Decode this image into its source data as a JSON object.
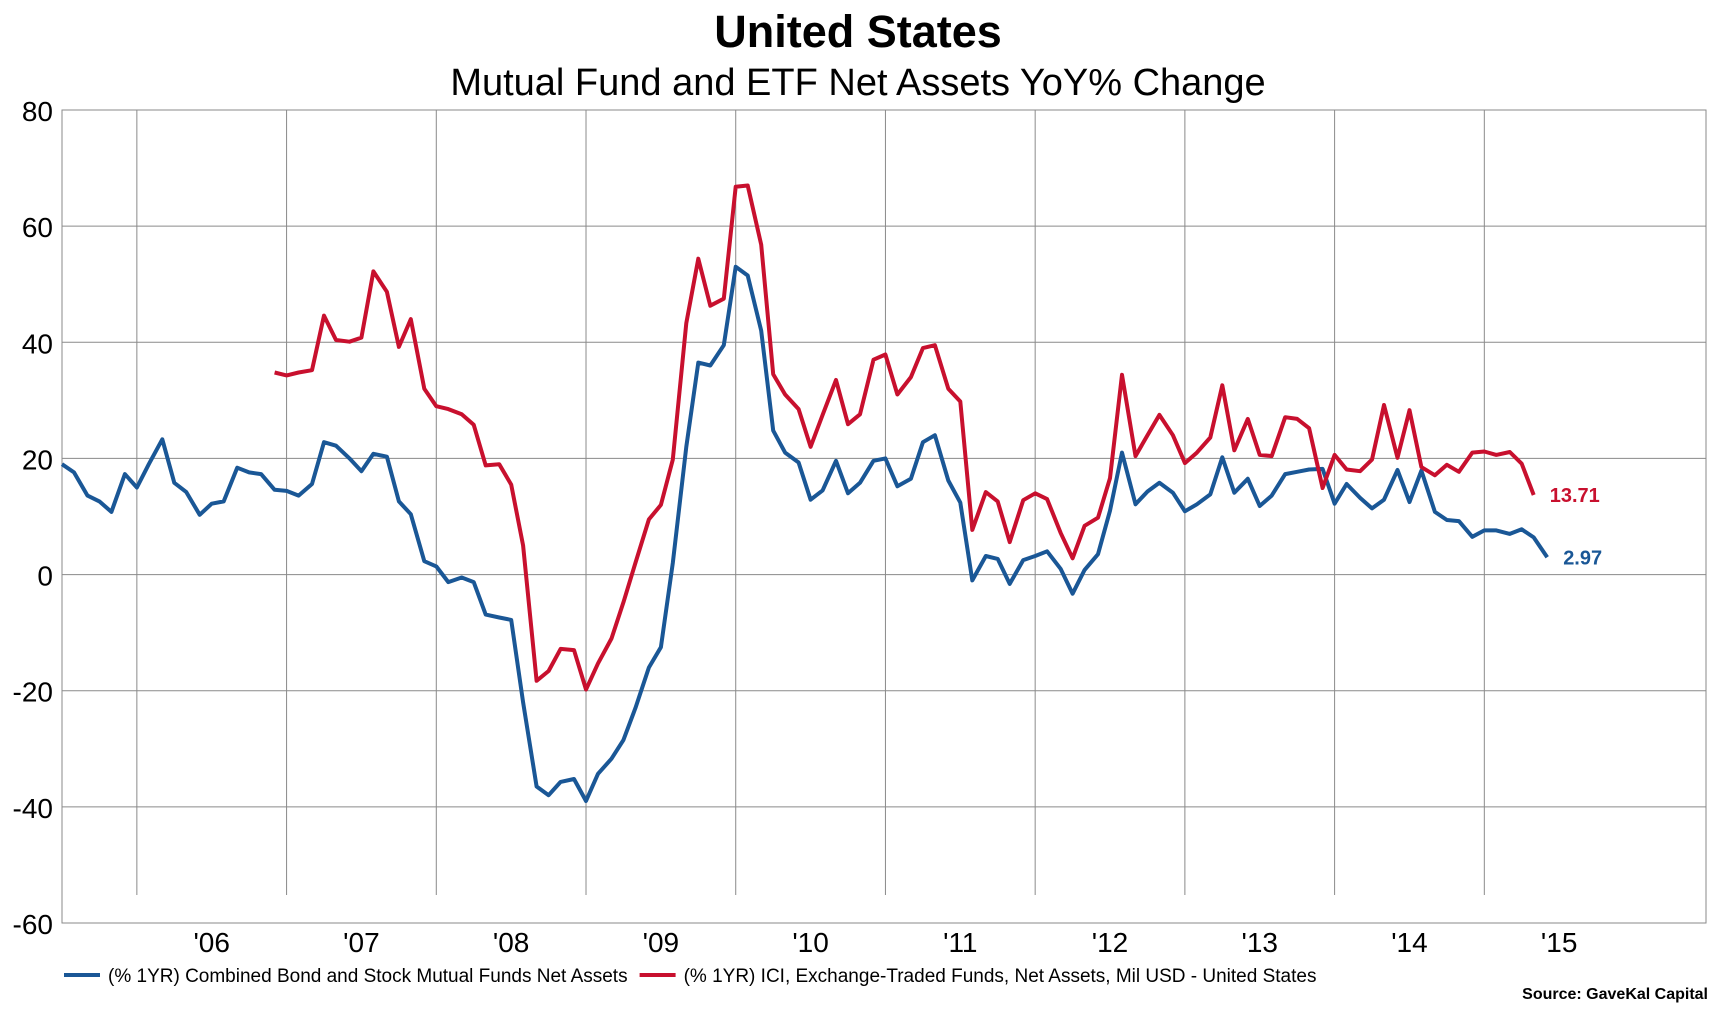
{
  "chart_data": {
    "type": "line",
    "title": "United States",
    "subtitle": "Mutual Fund and ETF Net Assets YoY% Change",
    "source": "Source: GaveKal Capital",
    "ylim": [
      -60,
      80
    ],
    "y_ticks": [
      "80",
      "60",
      "40",
      "20",
      "0",
      "-20",
      "-40",
      "-60"
    ],
    "y_tick_values": [
      80,
      60,
      40,
      20,
      0,
      -20,
      -40,
      -60
    ],
    "x_ticks": [
      "'06",
      "'07",
      "'08",
      "'09",
      "'10",
      "'11",
      "'12",
      "'13",
      "'14",
      "'15"
    ],
    "x_tick_values": [
      2006,
      2007,
      2008,
      2009,
      2010,
      2011,
      2012,
      2013,
      2014,
      2015
    ],
    "xlim": [
      2005.0,
      2015.62
    ],
    "grid": true,
    "legend_position": "bottom",
    "series": [
      {
        "name": "(% 1YR) Combined Bond and Stock Mutual Funds Net Assets",
        "color": "#1a5796",
        "end_label": "2.97",
        "points": [
          [
            2005.0,
            19
          ],
          [
            2005.08,
            17.6
          ],
          [
            2005.17,
            13.6
          ],
          [
            2005.25,
            12.6
          ],
          [
            2005.33,
            10.8
          ],
          [
            2005.42,
            17.3
          ],
          [
            2005.5,
            15
          ],
          [
            2005.58,
            19
          ],
          [
            2005.67,
            23.3
          ],
          [
            2005.75,
            15.8
          ],
          [
            2005.83,
            14.2
          ],
          [
            2005.92,
            10.3
          ],
          [
            2006.0,
            12.2
          ],
          [
            2006.08,
            12.6
          ],
          [
            2006.17,
            18.4
          ],
          [
            2006.25,
            17.6
          ],
          [
            2006.33,
            17.3
          ],
          [
            2006.42,
            14.6
          ],
          [
            2006.5,
            14.4
          ],
          [
            2006.58,
            13.6
          ],
          [
            2006.67,
            15.6
          ],
          [
            2006.75,
            22.8
          ],
          [
            2006.83,
            22.2
          ],
          [
            2006.92,
            20
          ],
          [
            2007.0,
            17.8
          ],
          [
            2007.08,
            20.8
          ],
          [
            2007.17,
            20.3
          ],
          [
            2007.25,
            12.6
          ],
          [
            2007.33,
            10.4
          ],
          [
            2007.42,
            2.3
          ],
          [
            2007.5,
            1.4
          ],
          [
            2007.58,
            -1.3
          ],
          [
            2007.67,
            -0.5
          ],
          [
            2007.75,
            -1.3
          ],
          [
            2007.83,
            -6.9
          ],
          [
            2007.92,
            -7.4
          ],
          [
            2008.0,
            -7.8
          ],
          [
            2008.08,
            -22
          ],
          [
            2008.17,
            -36.5
          ],
          [
            2008.25,
            -38
          ],
          [
            2008.33,
            -35.7
          ],
          [
            2008.42,
            -35.2
          ],
          [
            2008.5,
            -39
          ],
          [
            2008.58,
            -34.3
          ],
          [
            2008.67,
            -31.7
          ],
          [
            2008.75,
            -28.5
          ],
          [
            2008.83,
            -23
          ],
          [
            2008.92,
            -16
          ],
          [
            2009.0,
            -12.5
          ],
          [
            2009.08,
            2
          ],
          [
            2009.17,
            22
          ],
          [
            2009.25,
            36.5
          ],
          [
            2009.33,
            36
          ],
          [
            2009.42,
            39.5
          ],
          [
            2009.5,
            53
          ],
          [
            2009.58,
            51.5
          ],
          [
            2009.67,
            42
          ],
          [
            2009.75,
            24.8
          ],
          [
            2009.83,
            21
          ],
          [
            2009.92,
            19.3
          ],
          [
            2010.0,
            12.9
          ],
          [
            2010.08,
            14.5
          ],
          [
            2010.17,
            19.6
          ],
          [
            2010.25,
            14
          ],
          [
            2010.33,
            15.8
          ],
          [
            2010.42,
            19.6
          ],
          [
            2010.5,
            20
          ],
          [
            2010.58,
            15.2
          ],
          [
            2010.67,
            16.5
          ],
          [
            2010.75,
            22.8
          ],
          [
            2010.83,
            24
          ],
          [
            2010.92,
            16.2
          ],
          [
            2011.0,
            12.4
          ],
          [
            2011.08,
            -1
          ],
          [
            2011.17,
            3.2
          ],
          [
            2011.25,
            2.7
          ],
          [
            2011.33,
            -1.6
          ],
          [
            2011.42,
            2.5
          ],
          [
            2011.5,
            3.2
          ],
          [
            2011.58,
            4
          ],
          [
            2011.67,
            1
          ],
          [
            2011.75,
            -3.3
          ],
          [
            2011.83,
            0.8
          ],
          [
            2011.92,
            3.5
          ],
          [
            2012.0,
            11
          ],
          [
            2012.08,
            21
          ],
          [
            2012.17,
            12.1
          ],
          [
            2012.25,
            14.3
          ],
          [
            2012.33,
            15.8
          ],
          [
            2012.42,
            14.1
          ],
          [
            2012.5,
            10.9
          ],
          [
            2012.58,
            12.1
          ],
          [
            2012.67,
            13.8
          ],
          [
            2012.75,
            20.2
          ],
          [
            2012.83,
            14.1
          ],
          [
            2012.92,
            16.5
          ],
          [
            2013.0,
            11.8
          ],
          [
            2013.08,
            13.6
          ],
          [
            2013.17,
            17.3
          ],
          [
            2013.25,
            17.7
          ],
          [
            2013.33,
            18.1
          ],
          [
            2013.42,
            18.2
          ],
          [
            2013.5,
            12.2
          ],
          [
            2013.58,
            15.6
          ],
          [
            2013.67,
            13.2
          ],
          [
            2013.75,
            11.4
          ],
          [
            2013.83,
            12.9
          ],
          [
            2013.92,
            18
          ],
          [
            2014.0,
            12.5
          ],
          [
            2014.08,
            17.9
          ],
          [
            2014.17,
            10.8
          ],
          [
            2014.25,
            9.4
          ],
          [
            2014.33,
            9.2
          ],
          [
            2014.42,
            6.5
          ],
          [
            2014.5,
            7.6
          ],
          [
            2014.58,
            7.6
          ],
          [
            2014.67,
            7
          ],
          [
            2014.75,
            7.8
          ],
          [
            2014.83,
            6.4
          ],
          [
            2014.92,
            2.97
          ]
        ]
      },
      {
        "name": "(% 1YR) ICI, Exchange-Traded Funds, Net Assets, Mil USD - United States",
        "color": "#c8102e",
        "end_label": "13.71",
        "points": [
          [
            2006.42,
            34.8
          ],
          [
            2006.5,
            34.3
          ],
          [
            2006.58,
            34.8
          ],
          [
            2006.67,
            35.2
          ],
          [
            2006.75,
            44.6
          ],
          [
            2006.83,
            40.4
          ],
          [
            2006.92,
            40.1
          ],
          [
            2007.0,
            40.8
          ],
          [
            2007.08,
            52.2
          ],
          [
            2007.17,
            48.7
          ],
          [
            2007.25,
            39.2
          ],
          [
            2007.33,
            44
          ],
          [
            2007.42,
            32
          ],
          [
            2007.5,
            29
          ],
          [
            2007.58,
            28.5
          ],
          [
            2007.67,
            27.6
          ],
          [
            2007.75,
            25.8
          ],
          [
            2007.83,
            18.8
          ],
          [
            2007.92,
            19
          ],
          [
            2008.0,
            15.5
          ],
          [
            2008.08,
            5
          ],
          [
            2008.17,
            -18.3
          ],
          [
            2008.25,
            -16.6
          ],
          [
            2008.33,
            -12.8
          ],
          [
            2008.42,
            -13
          ],
          [
            2008.5,
            -19.8
          ],
          [
            2008.58,
            -15.3
          ],
          [
            2008.67,
            -11
          ],
          [
            2008.75,
            -4.8
          ],
          [
            2008.83,
            2
          ],
          [
            2008.92,
            9.5
          ],
          [
            2009.0,
            12
          ],
          [
            2009.08,
            19.8
          ],
          [
            2009.17,
            43.3
          ],
          [
            2009.25,
            54.4
          ],
          [
            2009.33,
            46.3
          ],
          [
            2009.42,
            47.5
          ],
          [
            2009.5,
            66.8
          ],
          [
            2009.58,
            67
          ],
          [
            2009.67,
            56.8
          ],
          [
            2009.75,
            34.5
          ],
          [
            2009.83,
            31
          ],
          [
            2009.92,
            28.5
          ],
          [
            2010.0,
            22
          ],
          [
            2010.08,
            27.5
          ],
          [
            2010.17,
            33.5
          ],
          [
            2010.25,
            25.9
          ],
          [
            2010.33,
            27.6
          ],
          [
            2010.42,
            37
          ],
          [
            2010.5,
            37.9
          ],
          [
            2010.58,
            31
          ],
          [
            2010.67,
            34
          ],
          [
            2010.75,
            39
          ],
          [
            2010.83,
            39.5
          ],
          [
            2010.92,
            32
          ],
          [
            2011.0,
            29.8
          ],
          [
            2011.08,
            7.7
          ],
          [
            2011.17,
            14.2
          ],
          [
            2011.25,
            12.6
          ],
          [
            2011.33,
            5.6
          ],
          [
            2011.42,
            12.8
          ],
          [
            2011.5,
            14
          ],
          [
            2011.58,
            13
          ],
          [
            2011.67,
            7.2
          ],
          [
            2011.75,
            2.8
          ],
          [
            2011.83,
            8.4
          ],
          [
            2011.92,
            9.8
          ],
          [
            2012.0,
            16.6
          ],
          [
            2012.08,
            34.4
          ],
          [
            2012.17,
            20.4
          ],
          [
            2012.25,
            24
          ],
          [
            2012.33,
            27.5
          ],
          [
            2012.42,
            24
          ],
          [
            2012.5,
            19.2
          ],
          [
            2012.58,
            21
          ],
          [
            2012.67,
            23.6
          ],
          [
            2012.75,
            32.6
          ],
          [
            2012.83,
            21.4
          ],
          [
            2012.92,
            26.8
          ],
          [
            2013.0,
            20.6
          ],
          [
            2013.08,
            20.4
          ],
          [
            2013.17,
            27.1
          ],
          [
            2013.25,
            26.8
          ],
          [
            2013.33,
            25.2
          ],
          [
            2013.42,
            14.9
          ],
          [
            2013.5,
            20.6
          ],
          [
            2013.58,
            18.1
          ],
          [
            2013.67,
            17.8
          ],
          [
            2013.75,
            19.8
          ],
          [
            2013.83,
            29.2
          ],
          [
            2013.92,
            20.1
          ],
          [
            2014.0,
            28.3
          ],
          [
            2014.08,
            18.5
          ],
          [
            2014.17,
            17.1
          ],
          [
            2014.25,
            18.9
          ],
          [
            2014.33,
            17.7
          ],
          [
            2014.42,
            21
          ],
          [
            2014.5,
            21.2
          ],
          [
            2014.58,
            20.6
          ],
          [
            2014.67,
            21.1
          ],
          [
            2014.75,
            19.1
          ],
          [
            2014.83,
            13.71
          ]
        ]
      }
    ]
  }
}
